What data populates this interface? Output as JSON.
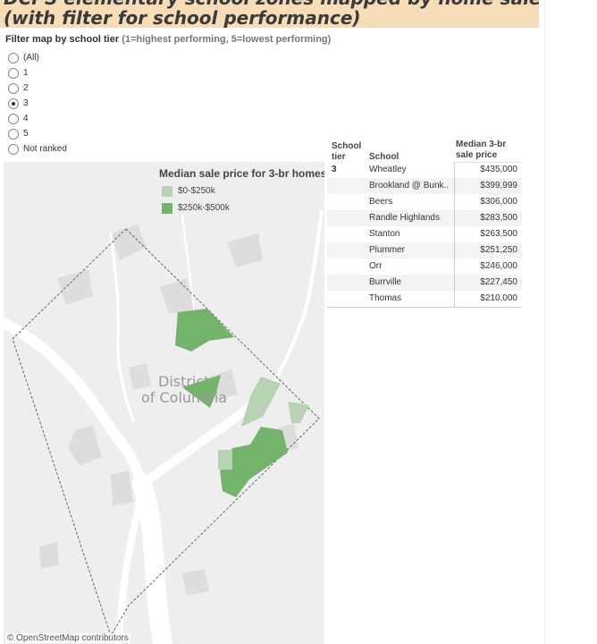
{
  "header": {
    "title_line1": "DCPS elementary school zones mapped by home sale prices",
    "title_line2": "(with filter for school performance)"
  },
  "filter": {
    "title": "Filter map by school tier",
    "subtitle": "(1=highest performing, 5=lowest performing)",
    "options": [
      "(All)",
      "1",
      "2",
      "3",
      "4",
      "5",
      "Not ranked"
    ],
    "selected": "3"
  },
  "map": {
    "legend_title": "Median sale price for 3-br homes",
    "legend": [
      {
        "label": "$0-$250k",
        "color": "#b7d3b3"
      },
      {
        "label": "$250k-$500k",
        "color": "#74b36b"
      }
    ],
    "place_label_line1": "District",
    "place_label_line2": "of Columbia",
    "attribution": "© OpenStreetMap contributors",
    "colors": {
      "land": "#eeeeee",
      "water": "#ffffff",
      "park": "#dcdcdc",
      "border": "#555555"
    }
  },
  "table": {
    "headers": {
      "tier": "School tier",
      "school": "School",
      "price": "Median 3-br sale price"
    },
    "tier_value": "3",
    "rows": [
      {
        "school": "Wheatley",
        "price": "$435,000"
      },
      {
        "school": "Brookland @ Bunk..",
        "price": "$399,999"
      },
      {
        "school": "Beers",
        "price": "$306,000"
      },
      {
        "school": "Randle Highlands",
        "price": "$283,500"
      },
      {
        "school": "Stanton",
        "price": "$263,500"
      },
      {
        "school": "Plummer",
        "price": "$251,250"
      },
      {
        "school": "Orr",
        "price": "$246,000"
      },
      {
        "school": "Burrville",
        "price": "$227,450"
      },
      {
        "school": "Thomas",
        "price": "$210,000"
      }
    ]
  }
}
